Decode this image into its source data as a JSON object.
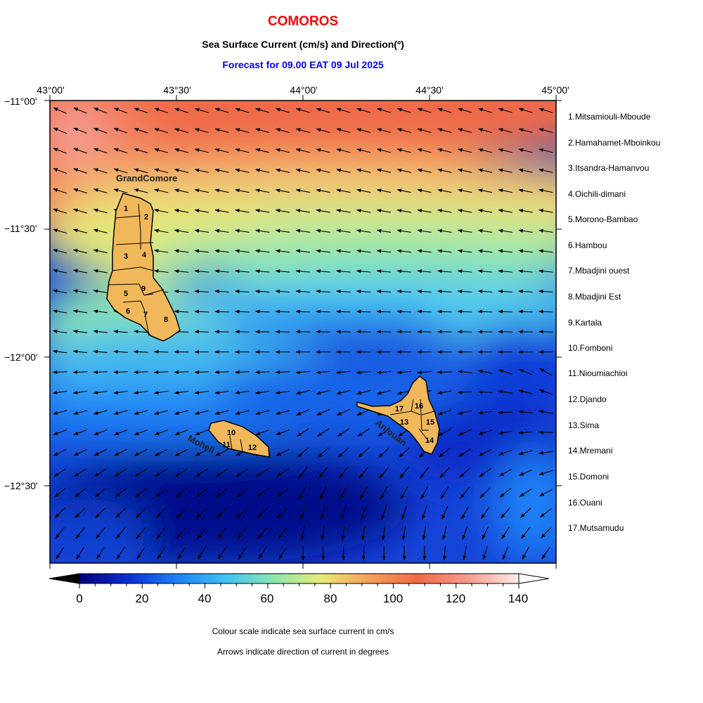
{
  "header": {
    "title": "COMOROS",
    "subtitle": "Sea Surface Current (cm/s) and Direction(º)",
    "forecast": "Forecast for  09.00 EAT 09 Jul 2025"
  },
  "colors": {
    "title": "#ff0000",
    "forecast": "#0000ff",
    "land": "#f0b85a",
    "scale": [
      "#00007a",
      "#0a2fd0",
      "#1f7ff5",
      "#3fc0f6",
      "#8ae6b2",
      "#e8ea78",
      "#f4a05a",
      "#f06a48",
      "#f59a8e",
      "#fdeaea"
    ]
  },
  "axes": {
    "lon_ticks": [
      "43°00'",
      "43°30'",
      "44°00'",
      "44°30'",
      "45°00'"
    ],
    "lat_ticks": [
      "−11°00'",
      "−11°30'",
      "−12°00'",
      "−12°30'"
    ]
  },
  "islands": {
    "grand_comore": "GrandComore",
    "moheli": "Moheli",
    "anjouan": "Anjouan"
  },
  "districts": [
    {
      "num": "1",
      "name": "1.Mitsamiouli-Mboude"
    },
    {
      "num": "2",
      "name": "2.Hamahamet-Mboinkou"
    },
    {
      "num": "3",
      "name": "3.Itsandra-Hamanvou"
    },
    {
      "num": "4",
      "name": "4.Oichili-dimani"
    },
    {
      "num": "5",
      "name": "5.Morono-Bambao"
    },
    {
      "num": "6",
      "name": "6.Hambou"
    },
    {
      "num": "7",
      "name": "7.Mbadjini ouest"
    },
    {
      "num": "8",
      "name": "8.Mbadjini Est"
    },
    {
      "num": "9",
      "name": "9.Kartala"
    },
    {
      "num": "10",
      "name": "10.Fomboni"
    },
    {
      "num": "11",
      "name": "11.Nioumiachioi"
    },
    {
      "num": "12",
      "name": "12.Djando"
    },
    {
      "num": "13",
      "name": "13.Sima"
    },
    {
      "num": "14",
      "name": "14.Mremani"
    },
    {
      "num": "15",
      "name": "15.Domoni"
    },
    {
      "num": "16",
      "name": "16.Ouani"
    },
    {
      "num": "17",
      "name": "17.Mutsamudu"
    }
  ],
  "colorbar": {
    "labels": [
      "0",
      "20",
      "40",
      "60",
      "80",
      "100",
      "120",
      "140"
    ],
    "min": 0,
    "max": 140
  },
  "notes": {
    "colour": "Colour scale indicate sea surface current in cm/s",
    "arrows": "Arrows indicate direction of current in degrees"
  }
}
